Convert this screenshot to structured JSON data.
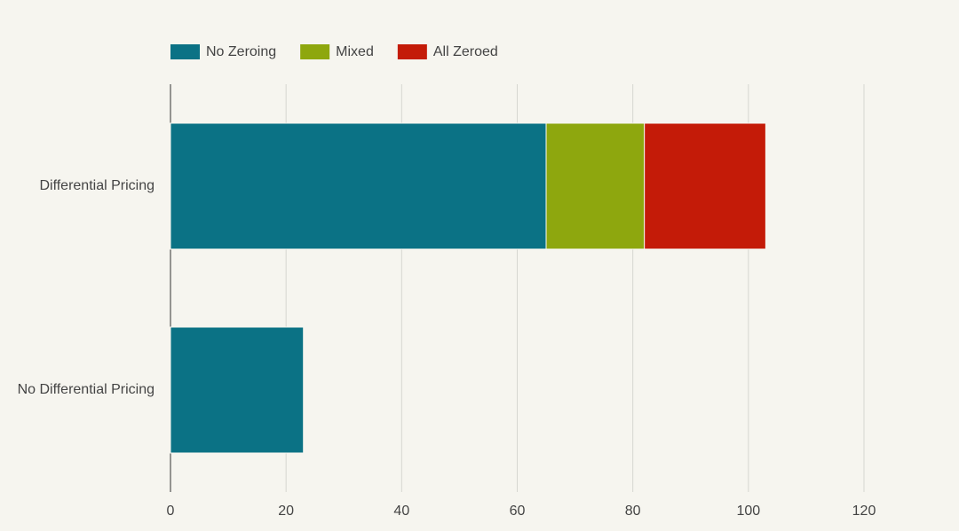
{
  "chart_data": {
    "type": "stacked-bar-horizontal",
    "categories": [
      "Differential Pricing",
      "No Differential Pricing"
    ],
    "series": [
      {
        "name": "No Zeroing",
        "color": "#0b7285",
        "values": [
          65,
          23
        ]
      },
      {
        "name": "Mixed",
        "color": "#8ea70e",
        "values": [
          17,
          0
        ]
      },
      {
        "name": "All Zeroed",
        "color": "#c41b08",
        "values": [
          21,
          0
        ]
      }
    ],
    "xlim": [
      0,
      120
    ],
    "xticks": [
      0,
      20,
      40,
      60,
      80,
      100,
      120
    ],
    "grid": true,
    "legend": "top"
  }
}
